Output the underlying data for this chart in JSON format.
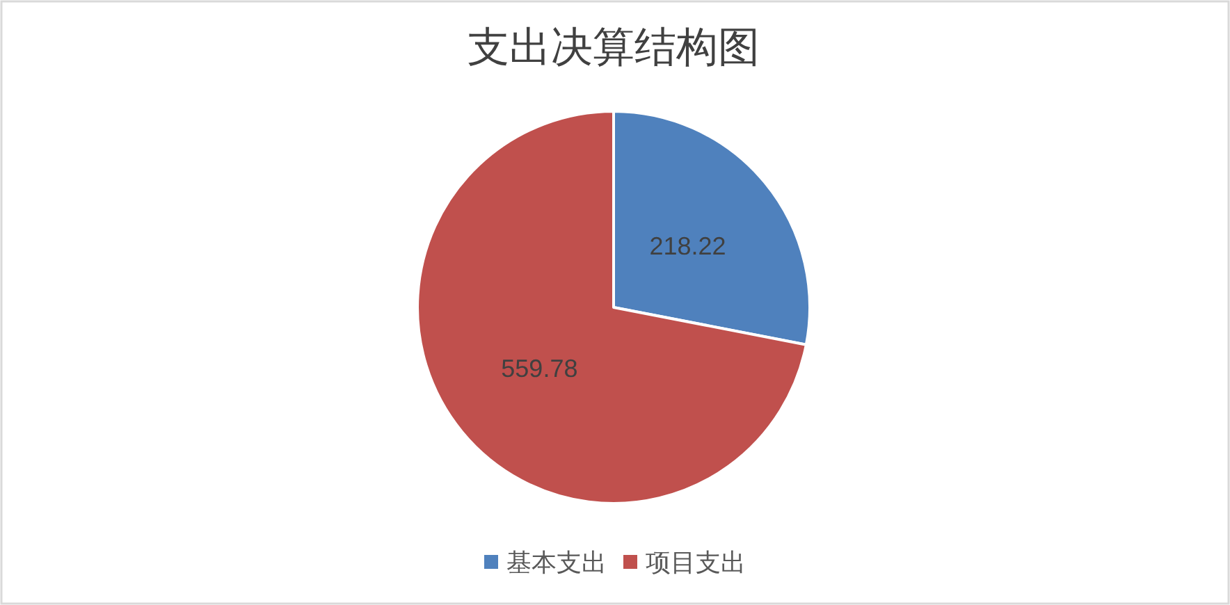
{
  "chart_data": {
    "type": "pie",
    "title": "支出决算结构图",
    "categories": [
      "基本支出",
      "项目支出"
    ],
    "values": [
      218.22,
      559.78
    ],
    "colors": [
      "#4f81bd",
      "#c0504d"
    ],
    "data_labels": true,
    "legend": "bottom"
  }
}
